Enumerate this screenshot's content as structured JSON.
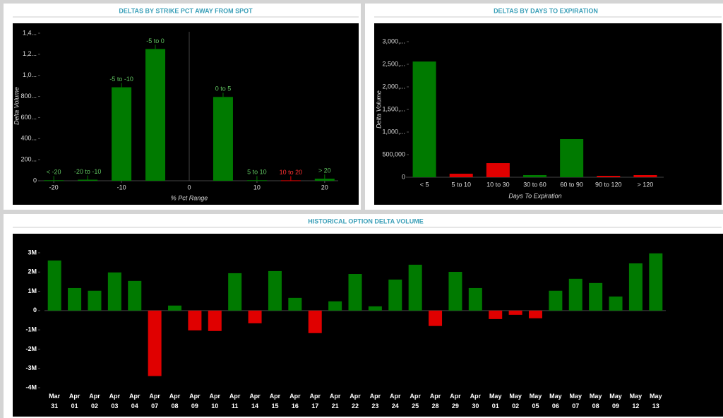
{
  "chart_data": [
    {
      "type": "bar",
      "title": "DELTAS BY STRIKE PCT AWAY FROM SPOT",
      "x_label": "% Pct Range",
      "y_label": "Delta Volume",
      "categories": [
        "< -20",
        "-20 to -10",
        "-5 to -10",
        "-5 to 0",
        "0 to 5",
        "5 to 10",
        "10 to 20",
        "> 20"
      ],
      "x": [
        -20,
        -15,
        -10,
        -5,
        5,
        10,
        15,
        20
      ],
      "values": [
        5000,
        10000,
        887000,
        1250000,
        795000,
        5000,
        4000,
        20000
      ],
      "colors": [
        "#007a00",
        "#007a00",
        "#007a00",
        "#007a00",
        "#007a00",
        "#007a00",
        "#e00000",
        "#007a00"
      ],
      "xlim": [
        -22,
        22
      ],
      "xticks": [
        -20,
        -10,
        0,
        10,
        20
      ],
      "ylim": [
        0,
        1400000
      ],
      "yticks": [
        0,
        {
          "value": 200000,
          "label": "200..."
        },
        {
          "value": 400000,
          "label": "400..."
        },
        {
          "value": 600000,
          "label": "600..."
        },
        {
          "value": 800000,
          "label": "800..."
        },
        {
          "value": 1000000,
          "label": "1,0..."
        },
        {
          "value": 1200000,
          "label": "1,2..."
        },
        {
          "value": 1400000,
          "label": "1,4..."
        }
      ]
    },
    {
      "type": "bar",
      "title": "DELTAS BY DAYS TO EXPIRATION",
      "x_label": "Days To Expiration",
      "y_label": "Delta Volume",
      "categories": [
        "< 5",
        "5 to 10",
        "10 to 30",
        "30 to 60",
        "60 to 90",
        "90 to 120",
        "> 120"
      ],
      "values": [
        2560000,
        78000,
        312000,
        47000,
        844000,
        31000,
        47000
      ],
      "colors": [
        "#007a00",
        "#e00000",
        "#e00000",
        "#007a00",
        "#007a00",
        "#e00000",
        "#e00000"
      ],
      "ylim": [
        0,
        3000000
      ],
      "yticks": [
        0,
        {
          "value": 500000,
          "label": "500,000"
        },
        {
          "value": 1000000,
          "label": "1,000,..."
        },
        {
          "value": 1500000,
          "label": "1,500,..."
        },
        {
          "value": 2000000,
          "label": "2,000,..."
        },
        {
          "value": 2500000,
          "label": "2,500,..."
        },
        {
          "value": 3000000,
          "label": "3,000,..."
        }
      ]
    },
    {
      "type": "bar",
      "title": "HISTORICAL OPTION DELTA VOLUME",
      "categories": [
        "Mar 31",
        "Apr 01",
        "Apr 02",
        "Apr 03",
        "Apr 04",
        "Apr 07",
        "Apr 08",
        "Apr 09",
        "Apr 10",
        "Apr 11",
        "Apr 14",
        "Apr 15",
        "Apr 16",
        "Apr 17",
        "Apr 21",
        "Apr 22",
        "Apr 23",
        "Apr 24",
        "Apr 25",
        "Apr 28",
        "Apr 29",
        "Apr 30",
        "May 01",
        "May 02",
        "May 05",
        "May 06",
        "May 07",
        "May 08",
        "May 09",
        "May 12",
        "May 13"
      ],
      "values": [
        2.6,
        1.17,
        1.03,
        1.98,
        1.54,
        -3.4,
        0.26,
        -1.03,
        -1.06,
        1.94,
        -0.66,
        2.05,
        0.66,
        -1.17,
        0.48,
        1.9,
        0.22,
        1.61,
        2.38,
        -0.8,
        2.01,
        1.17,
        -0.44,
        -0.22,
        -0.4,
        1.03,
        1.65,
        1.43,
        0.73,
        2.45,
        2.97
      ],
      "positive_color": "#007a00",
      "negative_color": "#e00000",
      "ylim": [
        -4,
        3
      ],
      "yticks": [
        {
          "value": -4,
          "label": "-4M"
        },
        {
          "value": -3,
          "label": "-3M"
        },
        {
          "value": -2,
          "label": "-2M"
        },
        {
          "value": -1,
          "label": "-1M"
        },
        0,
        {
          "value": 1,
          "label": "1M"
        },
        {
          "value": 2,
          "label": "2M"
        },
        {
          "value": 3,
          "label": "3M"
        }
      ]
    }
  ]
}
